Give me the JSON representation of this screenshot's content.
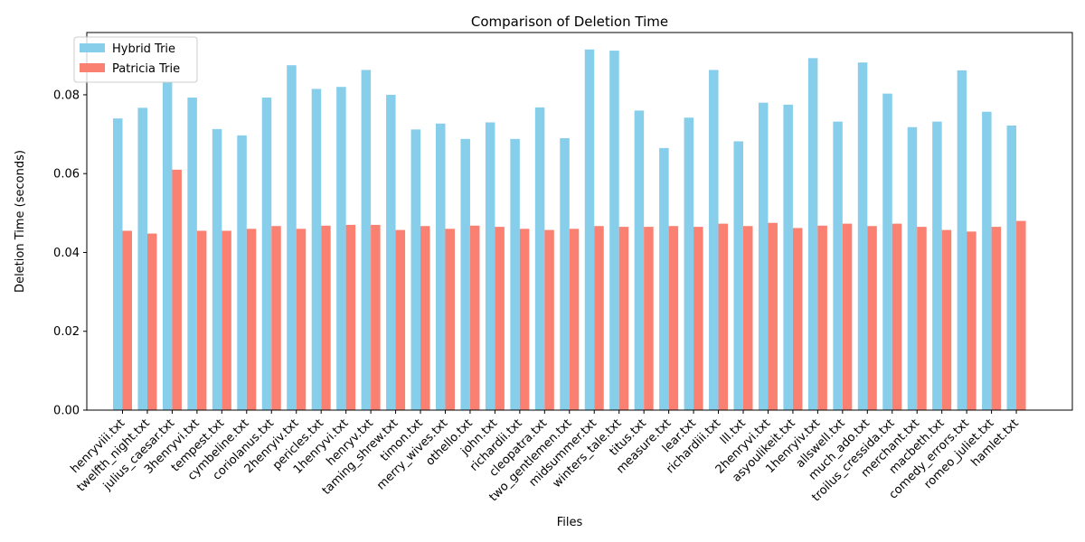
{
  "chart_data": {
    "type": "bar",
    "title": "Comparison of Deletion Time",
    "xlabel": "Files",
    "ylabel": "Deletion Time (seconds)",
    "ylim": [
      0,
      0.0958
    ],
    "yticks": [
      0.0,
      0.02,
      0.04,
      0.06,
      0.08
    ],
    "ytick_labels": [
      "0.00",
      "0.02",
      "0.04",
      "0.06",
      "0.08"
    ],
    "legend_position": "top-left",
    "categories": [
      "henryviii.txt",
      "twelfth_night.txt",
      "julius_caesar.txt",
      "3henryvi.txt",
      "tempest.txt",
      "cymbeline.txt",
      "coriolanus.txt",
      "2henryiv.txt",
      "pericles.txt",
      "1henryvi.txt",
      "henryv.txt",
      "taming_shrew.txt",
      "timon.txt",
      "merry_wives.txt",
      "othello.txt",
      "john.txt",
      "richardii.txt",
      "cleopatra.txt",
      "two_gentlemen.txt",
      "midsummer.txt",
      "winters_tale.txt",
      "titus.txt",
      "measure.txt",
      "lear.txt",
      "richardiii.txt",
      "lll.txt",
      "2henryvi.txt",
      "asyoulikeit.txt",
      "1henryiv.txt",
      "allswell.txt",
      "much_ado.txt",
      "troilus_cressida.txt",
      "merchant.txt",
      "macbeth.txt",
      "comedy_errors.txt",
      "romeo_juliet.txt",
      "hamlet.txt"
    ],
    "series": [
      {
        "name": "Hybrid Trie",
        "color": "#87ceeb",
        "values": [
          0.074,
          0.0767,
          0.0832,
          0.0793,
          0.0713,
          0.0697,
          0.0793,
          0.0875,
          0.0815,
          0.082,
          0.0863,
          0.08,
          0.0712,
          0.0727,
          0.0688,
          0.073,
          0.0688,
          0.0768,
          0.069,
          0.0915,
          0.0912,
          0.076,
          0.0665,
          0.0742,
          0.0863,
          0.0682,
          0.078,
          0.0775,
          0.0893,
          0.0732,
          0.0882,
          0.0803,
          0.0718,
          0.0732,
          0.0862,
          0.0757,
          0.0722
        ]
      },
      {
        "name": "Patricia Trie",
        "color": "#fa8072",
        "values": [
          0.0455,
          0.0448,
          0.061,
          0.0455,
          0.0455,
          0.046,
          0.0467,
          0.046,
          0.0468,
          0.047,
          0.047,
          0.0457,
          0.0467,
          0.046,
          0.0468,
          0.0465,
          0.046,
          0.0457,
          0.046,
          0.0467,
          0.0465,
          0.0465,
          0.0467,
          0.0465,
          0.0473,
          0.0467,
          0.0475,
          0.0462,
          0.0468,
          0.0473,
          0.0467,
          0.0473,
          0.0465,
          0.0457,
          0.0453,
          0.0465,
          0.048
        ]
      }
    ]
  }
}
